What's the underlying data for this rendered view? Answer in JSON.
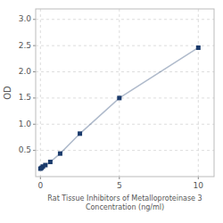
{
  "chart_data": {
    "type": "line",
    "x": [
      0.0,
      0.078,
      0.156,
      0.313,
      0.625,
      1.25,
      2.5,
      5.0,
      10.0
    ],
    "values": [
      0.152,
      0.168,
      0.192,
      0.22,
      0.28,
      0.44,
      0.82,
      1.5,
      2.46
    ],
    "xlabel": "Rat Tissue Inhibitors of Metalloproteinase 3\nConcentration (ng/ml)",
    "ylabel": "OD",
    "xlim": [
      -0.3,
      11
    ],
    "ylim": [
      0.0,
      3.2
    ],
    "xticks": [
      0,
      5,
      10
    ],
    "yticks": [
      0.5,
      {
        "value": 1.0,
        "label": "1.0"
      },
      1.5,
      {
        "value": 2.0,
        "label": "2.0"
      },
      2.5,
      {
        "value": 3.0,
        "label": "3.0"
      }
    ],
    "grid": true,
    "color": "#1a3a6b",
    "marker": "square"
  }
}
